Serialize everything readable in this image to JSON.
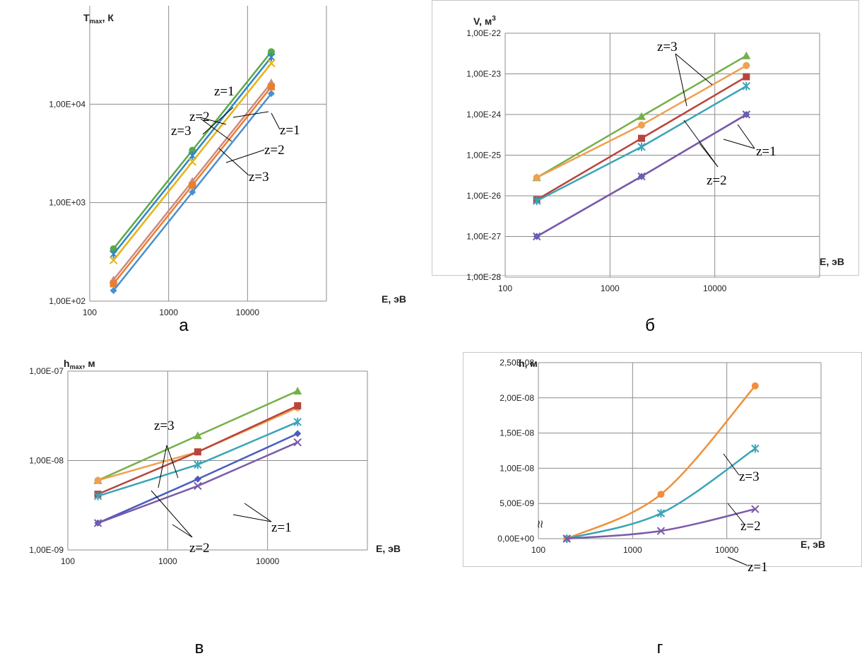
{
  "chart_data": [
    {
      "id": "a",
      "panel_label": "а",
      "type": "line",
      "ylabel": "T",
      "ylabel_sub": "max",
      "ylabel_unit": ", К",
      "xlabel": "E, эВ",
      "x": [
        200,
        2000,
        20000
      ],
      "x_scale": "log",
      "y_scale": "log",
      "xlim": [
        100,
        100000
      ],
      "ylim": [
        100,
        100000
      ],
      "x_ticks": [
        "100",
        "1000",
        "10000"
      ],
      "y_ticks": [
        "1,00E+02",
        "1,00E+03",
        "1,00E+04"
      ],
      "grid": true,
      "series": [
        {
          "values": [
            340,
            3400,
            34000
          ],
          "color": "#5aa84a",
          "marker": "circle"
        },
        {
          "values": [
            300,
            3000,
            30000
          ],
          "color": "#2f86c4",
          "marker": "cross"
        },
        {
          "values": [
            260,
            2600,
            26000
          ],
          "color": "#e8b214",
          "marker": "x"
        },
        {
          "values": [
            165,
            1650,
            16500
          ],
          "color": "#cc8a80",
          "marker": "triangle"
        },
        {
          "values": [
            150,
            1500,
            15000
          ],
          "color": "#e87f2e",
          "marker": "square"
        },
        {
          "values": [
            128,
            1280,
            12800
          ],
          "color": "#4a8fd0",
          "marker": "diamond"
        }
      ],
      "annotations": [
        "z=1",
        "z=2",
        "z=3",
        "z=1",
        "z=2",
        "z=3"
      ]
    },
    {
      "id": "b",
      "panel_label": "б",
      "type": "line",
      "ylabel": "V, м",
      "ylabel_sup": "3",
      "xlabel": "E, эВ",
      "x": [
        200,
        2000,
        20000
      ],
      "x_scale": "log",
      "y_scale": "log",
      "xlim": [
        100,
        100000
      ],
      "ylim": [
        1e-28,
        1e-22
      ],
      "x_ticks": [
        "100",
        "1000",
        "10000"
      ],
      "y_ticks": [
        "1,00E-28",
        "1,00E-27",
        "1,00E-26",
        "1,00E-25",
        "1,00E-24",
        "1,00E-23",
        "1,00E-22"
      ],
      "grid": true,
      "series": [
        {
          "values": [
            2.8e-26,
            9e-25,
            2.8e-23
          ],
          "color": "#77b04a",
          "marker": "triangle"
        },
        {
          "values": [
            2.8e-26,
            5.5e-25,
            1.6e-23
          ],
          "color": "#f0a050",
          "marker": "circle"
        },
        {
          "values": [
            8e-27,
            2.6e-25,
            8.5e-24
          ],
          "color": "#b8443c",
          "marker": "square"
        },
        {
          "values": [
            7.5e-27,
            1.6e-25,
            5e-24
          ],
          "color": "#3aa4b8",
          "marker": "cross"
        },
        {
          "values": [
            1e-27,
            3e-26,
            1e-24
          ],
          "color": "#4a5cc0",
          "marker": "diamond"
        },
        {
          "values": [
            1e-27,
            3e-26,
            1e-24
          ],
          "color": "#7b5aa8",
          "marker": "x"
        }
      ],
      "annotations": [
        "z=3",
        "z=2",
        "z=1"
      ]
    },
    {
      "id": "v",
      "panel_label": "в",
      "type": "line",
      "ylabel": "h",
      "ylabel_sub": "max",
      "ylabel_unit": ", м",
      "xlabel": "E, эВ",
      "x": [
        200,
        2000,
        20000
      ],
      "x_scale": "log",
      "y_scale": "log",
      "xlim": [
        100,
        100000
      ],
      "ylim": [
        1e-09,
        1e-07
      ],
      "x_ticks": [
        "100",
        "1000",
        "10000"
      ],
      "y_ticks": [
        "1,00E-09",
        "1,00E-08",
        "1,00E-07"
      ],
      "grid": true,
      "series": [
        {
          "values": [
            6e-09,
            1.9e-08,
            6e-08
          ],
          "color": "#77b04a",
          "marker": "triangle"
        },
        {
          "values": [
            6e-09,
            1.25e-08,
            3.9e-08
          ],
          "color": "#f0a050",
          "marker": "circle"
        },
        {
          "values": [
            4.2e-09,
            1.25e-08,
            4.1e-08
          ],
          "color": "#b8443c",
          "marker": "square"
        },
        {
          "values": [
            4e-09,
            9e-09,
            2.7e-08
          ],
          "color": "#3aa4b8",
          "marker": "cross"
        },
        {
          "values": [
            2e-09,
            6.2e-09,
            2e-08
          ],
          "color": "#4a5cc0",
          "marker": "diamond"
        },
        {
          "values": [
            2e-09,
            5.2e-09,
            1.6e-08
          ],
          "color": "#7b5aa8",
          "marker": "x"
        }
      ],
      "annotations": [
        "z=3",
        "z=2",
        "z=1"
      ]
    },
    {
      "id": "g",
      "panel_label": "г",
      "type": "line",
      "ylabel": "h, м",
      "xlabel": "E, эВ",
      "x": [
        200,
        2000,
        20000
      ],
      "x_scale": "log",
      "y_scale": "linear",
      "xlim": [
        100,
        100000
      ],
      "ylim": [
        0,
        2.5e-08
      ],
      "x_ticks": [
        "100",
        "1000",
        "10000"
      ],
      "y_ticks": [
        "0,00E+00",
        "5,00E-09",
        "1,00E-08",
        "1,50E-08",
        "2,00E-08",
        "2,50E-08"
      ],
      "grid": true,
      "series": [
        {
          "values": [
            0,
            6.3e-09,
            2.17e-08
          ],
          "color": "#f0903a",
          "marker": "circle"
        },
        {
          "values": [
            0,
            3.6e-09,
            1.28e-08
          ],
          "color": "#3aa4b8",
          "marker": "cross"
        },
        {
          "values": [
            0,
            1.1e-09,
            4.2e-09
          ],
          "color": "#7b5aa8",
          "marker": "x"
        }
      ],
      "annotations": [
        "z=3",
        "z=2",
        "z=1"
      ],
      "axis_break": "≈"
    }
  ]
}
